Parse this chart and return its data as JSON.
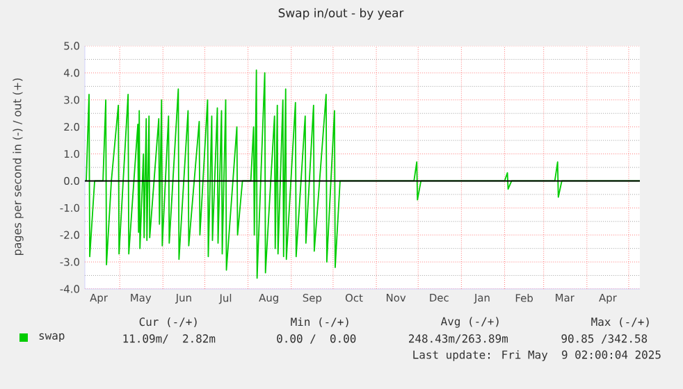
{
  "chart_data": {
    "type": "line",
    "title": "Swap in/out - by year",
    "ylabel": "pages per second in (-) / out (+)",
    "x": [
      "2024-04-07",
      "2024-04-09",
      "2024-04-09T12:00",
      "2024-04-13",
      "2024-04-19",
      "2024-04-21",
      "2024-04-21T12:00",
      "2024-04-25",
      "2024-04-30",
      "2024-04-30T12:00",
      "2024-05-07",
      "2024-05-07T12:00",
      "2024-05-14",
      "2024-05-14T12:00",
      "2024-05-15",
      "2024-05-15T12:00",
      "2024-05-18",
      "2024-05-18T12:00",
      "2024-05-20",
      "2024-05-20T12:00",
      "2024-05-22",
      "2024-05-22T12:00",
      "2024-05-29",
      "2024-05-29T12:00",
      "2024-05-31",
      "2024-05-31T12:00",
      "2024-06-05",
      "2024-06-05T12:00",
      "2024-06-12",
      "2024-06-12T12:00",
      "2024-06-19",
      "2024-06-19T12:00",
      "2024-06-27",
      "2024-06-27T12:00",
      "2024-07-03",
      "2024-07-03T12:00",
      "2024-07-06",
      "2024-07-06T12:00",
      "2024-07-10",
      "2024-07-10T12:00",
      "2024-07-13",
      "2024-07-13T12:00",
      "2024-07-16",
      "2024-07-16T12:00",
      "2024-07-24",
      "2024-07-24T12:00",
      "2024-07-28",
      "2024-08-03",
      "2024-08-05",
      "2024-08-05T12:00",
      "2024-08-07",
      "2024-08-07T12:00",
      "2024-08-13",
      "2024-08-13T12:00",
      "2024-08-20",
      "2024-08-20T12:00",
      "2024-08-22",
      "2024-08-22T12:00",
      "2024-08-26",
      "2024-08-26T12:00",
      "2024-08-28",
      "2024-08-28T12:00",
      "2024-09-04",
      "2024-09-04T12:00",
      "2024-09-11",
      "2024-09-11T12:00",
      "2024-09-17",
      "2024-09-17T12:00",
      "2024-09-26",
      "2024-09-26T12:00",
      "2024-10-02",
      "2024-10-02T12:00",
      "2024-10-06",
      "2024-11-28",
      "2024-11-30",
      "2024-11-30T12:00",
      "2024-12-03",
      "2025-02-01",
      "2025-02-03",
      "2025-02-03T12:00",
      "2025-02-06",
      "2025-03-09",
      "2025-03-11",
      "2025-03-11T12:00",
      "2025-03-14",
      "2025-05-09"
    ],
    "series": [
      {
        "name": "swap",
        "color": "#00cc00",
        "values": [
          0,
          3.2,
          -2.8,
          0,
          0,
          3.0,
          -3.1,
          0,
          2.8,
          -2.7,
          3.2,
          -2.7,
          2.1,
          -1.9,
          2.6,
          -2.5,
          1.0,
          -2.1,
          2.3,
          -2.2,
          2.4,
          -2.1,
          2.3,
          -1.6,
          3.0,
          -2.4,
          2.4,
          -2.3,
          3.4,
          -2.9,
          2.6,
          -2.4,
          2.2,
          -2.0,
          3.0,
          -2.8,
          2.4,
          -2.2,
          2.7,
          -2.3,
          2.6,
          -2.7,
          3.0,
          -3.3,
          2.0,
          -2.0,
          0,
          0,
          2.0,
          -2.0,
          4.1,
          -3.6,
          4.0,
          -3.4,
          2.4,
          -2.5,
          2.8,
          -2.7,
          3.0,
          -2.8,
          3.4,
          -2.9,
          2.9,
          -2.8,
          2.4,
          -2.3,
          2.8,
          -2.6,
          3.2,
          -3.0,
          2.6,
          -3.2,
          0,
          0,
          0.7,
          -0.7,
          0,
          0,
          0.3,
          -0.3,
          0,
          0,
          0.7,
          -0.6,
          0,
          0
        ]
      }
    ],
    "xlim": [
      "2024-04-06",
      "2025-05-09"
    ],
    "xticks": [
      {
        "value": "2024-04-16",
        "label": "Apr"
      },
      {
        "value": "2024-05-01",
        "label": null
      },
      {
        "value": "2024-05-16",
        "label": "May"
      },
      {
        "value": "2024-06-01",
        "label": null
      },
      {
        "value": "2024-06-16",
        "label": "Jun"
      },
      {
        "value": "2024-07-01",
        "label": null
      },
      {
        "value": "2024-07-16",
        "label": "Jul"
      },
      {
        "value": "2024-08-01",
        "label": null
      },
      {
        "value": "2024-08-16",
        "label": "Aug"
      },
      {
        "value": "2024-09-01",
        "label": null
      },
      {
        "value": "2024-09-16",
        "label": "Sep"
      },
      {
        "value": "2024-10-01",
        "label": null
      },
      {
        "value": "2024-10-16",
        "label": "Oct"
      },
      {
        "value": "2024-11-01",
        "label": null
      },
      {
        "value": "2024-11-15",
        "label": "Nov"
      },
      {
        "value": "2024-12-01",
        "label": null
      },
      {
        "value": "2024-12-16",
        "label": "Dec"
      },
      {
        "value": "2025-01-01",
        "label": null
      },
      {
        "value": "2025-01-16",
        "label": "Jan"
      },
      {
        "value": "2025-02-01",
        "label": null
      },
      {
        "value": "2025-02-15",
        "label": "Feb"
      },
      {
        "value": "2025-03-01",
        "label": null
      },
      {
        "value": "2025-03-16",
        "label": "Mar"
      },
      {
        "value": "2025-04-01",
        "label": null
      },
      {
        "value": "2025-04-16",
        "label": "Apr"
      },
      {
        "value": "2025-05-01",
        "label": null
      }
    ],
    "ylim": [
      -4,
      5
    ],
    "yticks": [
      {
        "value": -4,
        "label": "-4.0"
      },
      {
        "value": -3.5,
        "label": null
      },
      {
        "value": -3,
        "label": "-3.0"
      },
      {
        "value": -2.5,
        "label": null
      },
      {
        "value": -2,
        "label": "-2.0"
      },
      {
        "value": -1.5,
        "label": null
      },
      {
        "value": -1,
        "label": "-1.0"
      },
      {
        "value": -0.5,
        "label": null
      },
      {
        "value": 0,
        "label": "0.0"
      },
      {
        "value": 0.5,
        "label": null
      },
      {
        "value": 1,
        "label": "1.0"
      },
      {
        "value": 1.5,
        "label": null
      },
      {
        "value": 2,
        "label": "2.0"
      },
      {
        "value": 2.5,
        "label": null
      },
      {
        "value": 3,
        "label": "3.0"
      },
      {
        "value": 3.5,
        "label": null
      },
      {
        "value": 4,
        "label": "4.0"
      },
      {
        "value": 4.5,
        "label": null
      },
      {
        "value": 5,
        "label": "5.0"
      }
    ],
    "ref_lines": [
      {
        "axis": "y",
        "value": 0,
        "color": "#000000"
      }
    ],
    "grid": true,
    "legend": "bottom left",
    "marker": "none",
    "line_style": "solid",
    "annotations": [
      "Cur (-/+)",
      "Min (-/+)",
      "Avg (-/+)",
      "Max (-/+)",
      "11.09m/  2.82m",
      "0.00 /  0.00",
      "248.43m/263.89m",
      "90.85 /342.58",
      "Last update: Fri May  9 02:00:04 2025"
    ]
  }
}
